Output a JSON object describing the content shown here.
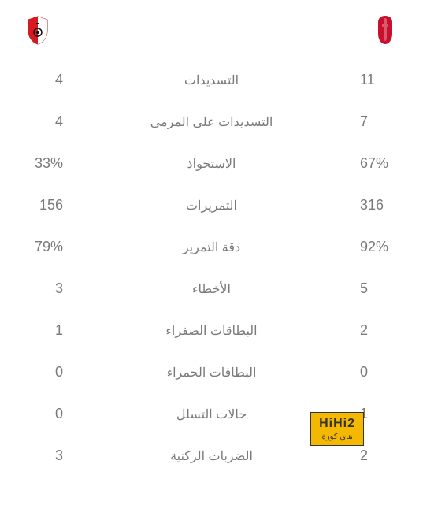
{
  "teams": {
    "home": {
      "name": "liverpool",
      "color": "#c8102e"
    },
    "away": {
      "name": "southampton",
      "color_red": "#d71920",
      "color_black": "#130c0e"
    }
  },
  "stats": [
    {
      "label": "التسديدات",
      "home": "11",
      "away": "4"
    },
    {
      "label": "التسديدات على المرمى",
      "home": "7",
      "away": "4"
    },
    {
      "label": "الاستحواذ",
      "home": "67%",
      "away": "33%"
    },
    {
      "label": "التمريرات",
      "home": "316",
      "away": "156"
    },
    {
      "label": "دقة التمرير",
      "home": "92%",
      "away": "79%"
    },
    {
      "label": "الأخطاء",
      "home": "5",
      "away": "3"
    },
    {
      "label": "البطاقات الصفراء",
      "home": "2",
      "away": "1"
    },
    {
      "label": "البطاقات الحمراء",
      "home": "0",
      "away": "0"
    },
    {
      "label": "حالات التسلل",
      "home": "1",
      "away": "0"
    },
    {
      "label": "الضربات الركنية",
      "home": "2",
      "away": "3"
    }
  ],
  "watermark": {
    "top": "HiHi2",
    "bottom": "هاي كورة"
  }
}
